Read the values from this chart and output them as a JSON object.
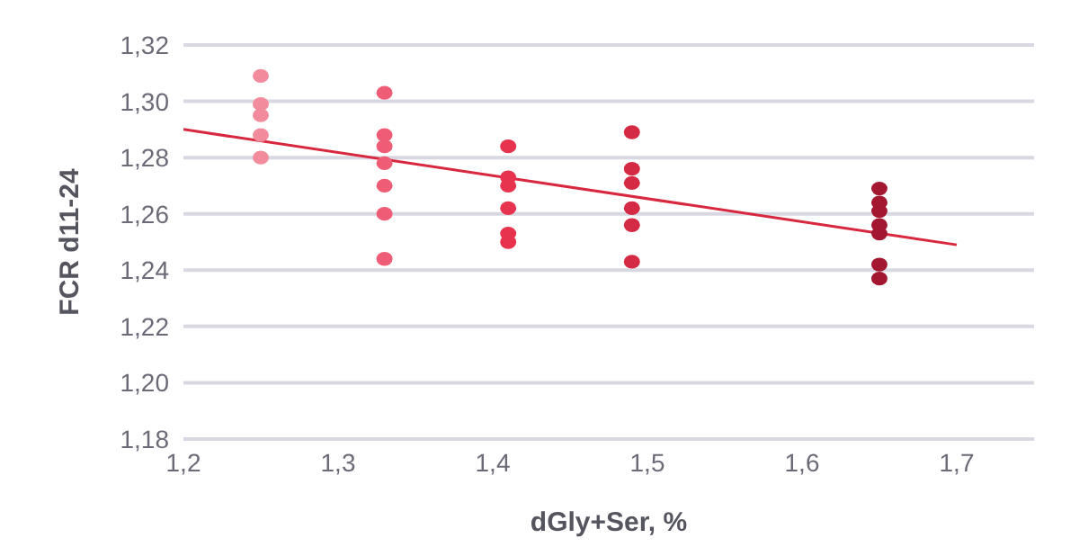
{
  "chart_data": {
    "type": "scatter",
    "xlabel": "dGly+Ser, %",
    "ylabel": "FCR d11-24",
    "xlim": [
      1.2,
      1.75
    ],
    "xticks": [
      {
        "value": 1.2,
        "label": "1,2"
      },
      {
        "value": 1.3,
        "label": "1,3"
      },
      {
        "value": 1.4,
        "label": "1,4"
      },
      {
        "value": 1.5,
        "label": "1,5"
      },
      {
        "value": 1.6,
        "label": "1,6"
      },
      {
        "value": 1.7,
        "label": "1,7"
      }
    ],
    "ylim": [
      1.18,
      1.32
    ],
    "yticks": [
      {
        "value": 1.18,
        "label": "1,18"
      },
      {
        "value": 1.2,
        "label": "1,20"
      },
      {
        "value": 1.22,
        "label": "1,22"
      },
      {
        "value": 1.24,
        "label": "1,24"
      },
      {
        "value": 1.26,
        "label": "1,26"
      },
      {
        "value": 1.28,
        "label": "1,28"
      },
      {
        "value": 1.3,
        "label": "1,30"
      },
      {
        "value": 1.32,
        "label": "1,32"
      }
    ],
    "grid": "y",
    "marker": "circle",
    "series": [
      {
        "color": "#f28b9b",
        "x": [
          1.25,
          1.25,
          1.25,
          1.25,
          1.25
        ],
        "values": [
          1.309,
          1.299,
          1.295,
          1.288,
          1.28
        ]
      },
      {
        "color": "#ee5d75",
        "x": [
          1.33,
          1.33,
          1.33,
          1.33,
          1.33,
          1.33,
          1.33
        ],
        "values": [
          1.303,
          1.288,
          1.284,
          1.278,
          1.27,
          1.26,
          1.244
        ]
      },
      {
        "color": "#e8334f",
        "x": [
          1.41,
          1.41,
          1.41,
          1.41,
          1.41,
          1.41
        ],
        "values": [
          1.284,
          1.273,
          1.27,
          1.262,
          1.253,
          1.25
        ]
      },
      {
        "color": "#d42a44",
        "x": [
          1.49,
          1.49,
          1.49,
          1.49,
          1.49,
          1.49
        ],
        "values": [
          1.289,
          1.276,
          1.271,
          1.262,
          1.256,
          1.243
        ]
      },
      {
        "color": "#a31730",
        "x": [
          1.65,
          1.65,
          1.65,
          1.65,
          1.65,
          1.65,
          1.65
        ],
        "values": [
          1.269,
          1.264,
          1.261,
          1.256,
          1.253,
          1.242,
          1.237
        ]
      },
      {
        "type": "line",
        "color": "#d8283f",
        "x": [
          1.2,
          1.7
        ],
        "values": [
          1.29,
          1.249
        ],
        "marker": "none",
        "line_style": "solid"
      }
    ]
  }
}
